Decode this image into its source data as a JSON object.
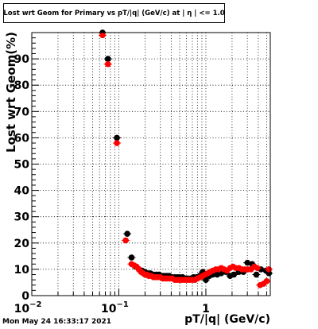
{
  "header": {
    "title": "Lost wrt Geom for Primary vs pT/|q| (GeV/c) at | η | <= 1.0"
  },
  "footer": {
    "timestamp": "Mon May 24 16:33:17 2021"
  },
  "colors": {
    "series_black": "#000000",
    "series_red": "#ff0000",
    "grid": "#000000",
    "frame": "#000000"
  },
  "chart_data": {
    "type": "scatter",
    "title": "Lost wrt Geom for Primary vs pT/|q| (GeV/c) at | η | <= 1.0",
    "xlabel": "pT/|q| (GeV/c)",
    "ylabel": "Lost wrt Geom(%)",
    "x_scale": "log",
    "xlim": [
      0.01,
      5.5
    ],
    "ylim": [
      0,
      100
    ],
    "grid": true,
    "x_ticks": [
      {
        "value": 0.01,
        "base": "10",
        "exp": "−2"
      },
      {
        "value": 0.1,
        "base": "10",
        "exp": "−1"
      },
      {
        "value": 1,
        "base": "1",
        "exp": ""
      }
    ],
    "y_ticks": [
      0,
      10,
      20,
      30,
      40,
      50,
      60,
      70,
      80,
      90
    ],
    "series": [
      {
        "color": "#000000",
        "x": [
          0.065,
          0.075,
          0.095,
          0.125,
          0.14,
          0.155,
          0.17,
          0.185,
          0.2,
          0.215,
          0.23,
          0.25,
          0.27,
          0.29,
          0.31,
          0.33,
          0.355,
          0.38,
          0.41,
          0.44,
          0.47,
          0.5,
          0.54,
          0.58,
          0.62,
          0.67,
          0.72,
          0.78,
          0.85,
          0.92,
          1.0,
          1.1,
          1.2,
          1.35,
          1.5,
          1.7,
          1.9,
          2.1,
          2.4,
          2.7,
          3.0,
          3.4,
          3.8,
          4.3,
          4.9,
          5.3
        ],
        "y": [
          100,
          90,
          60,
          23.5,
          14.5,
          11,
          10,
          9.5,
          9,
          8.5,
          8.5,
          8,
          8,
          8,
          7.5,
          7.5,
          7.5,
          7.5,
          7,
          7,
          7,
          7,
          7,
          6.5,
          6.5,
          6.5,
          7,
          7,
          7.5,
          9,
          6,
          7.5,
          8,
          8,
          8.5,
          9,
          7.5,
          8,
          9,
          9,
          12.5,
          12,
          8,
          10,
          9.5,
          8.5
        ]
      },
      {
        "color": "#ff0000",
        "x": [
          0.065,
          0.075,
          0.095,
          0.12,
          0.14,
          0.15,
          0.16,
          0.17,
          0.18,
          0.19,
          0.2,
          0.21,
          0.22,
          0.235,
          0.25,
          0.265,
          0.28,
          0.3,
          0.32,
          0.34,
          0.36,
          0.385,
          0.41,
          0.44,
          0.47,
          0.5,
          0.53,
          0.57,
          0.61,
          0.65,
          0.7,
          0.75,
          0.8,
          0.86,
          0.92,
          0.98,
          1.05,
          1.12,
          1.2,
          1.3,
          1.4,
          1.5,
          1.62,
          1.75,
          1.9,
          2.05,
          2.2,
          2.4,
          2.6,
          2.8,
          3.05,
          3.3,
          3.6,
          3.9,
          4.2,
          4.6,
          5.0,
          5.3
        ],
        "y": [
          99,
          88,
          58,
          21,
          12,
          11.5,
          11,
          10,
          9,
          8.5,
          8,
          8,
          7.5,
          7.5,
          7,
          7,
          7,
          7,
          6.5,
          6.5,
          6.5,
          6.5,
          6.5,
          6,
          6,
          6,
          6,
          6,
          6,
          6,
          6,
          6,
          6.5,
          7,
          7.5,
          8,
          8.5,
          9,
          9.5,
          10,
          10,
          10.5,
          10,
          9.5,
          10.5,
          11,
          10.5,
          10.5,
          10,
          10,
          10,
          10,
          11,
          10.5,
          4,
          4.5,
          5.5,
          10
        ]
      }
    ]
  }
}
